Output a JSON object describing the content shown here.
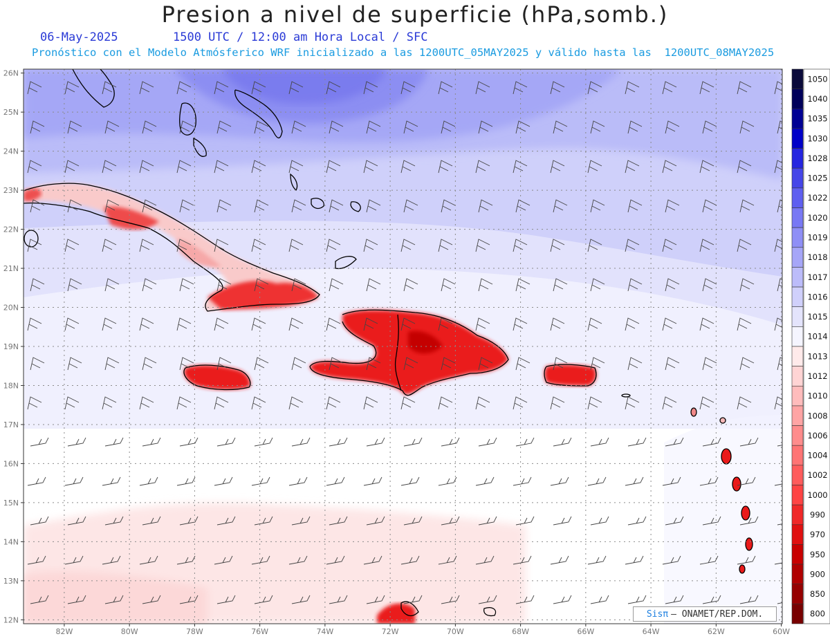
{
  "header": {
    "title": "Presion a nivel de superficie (hPa,somb.)",
    "date": "06-May-2025",
    "time_info": "1500 UTC / 12:00 am Hora Local / SFC",
    "forecast_info": "Pronóstico con el Modelo Atmósferico WRF inicializado a las 1200UTC_05MAY2025 y válido hasta las  1200UTC_08MAY2025"
  },
  "map": {
    "lat_labels": [
      "12N",
      "13N",
      "14N",
      "15N",
      "16N",
      "17N",
      "18N",
      "19N",
      "20N",
      "21N",
      "22N",
      "23N",
      "24N",
      "25N",
      "26N"
    ],
    "lon_labels": [
      "82W",
      "80W",
      "78W",
      "76W",
      "74W",
      "72W",
      "70W",
      "68W",
      "66W",
      "64W",
      "62W",
      "60W"
    ]
  },
  "legend": {
    "levels": [
      "1050",
      "1040",
      "1035",
      "1030",
      "1028",
      "1025",
      "1022",
      "1020",
      "1019",
      "1018",
      "1017",
      "1016",
      "1015",
      "1014",
      "1013",
      "1012",
      "1010",
      "1008",
      "1006",
      "1004",
      "1002",
      "1000",
      "990",
      "970",
      "950",
      "900",
      "850",
      "800"
    ],
    "colors": [
      "#0a0a3a",
      "#00005a",
      "#000094",
      "#0000c8",
      "#2525e0",
      "#4545e8",
      "#5f5ff0",
      "#7878f4",
      "#8f8ff6",
      "#a6a6f8",
      "#bcbcfa",
      "#d0d0fb",
      "#e4e4fc",
      "#f5f5ff",
      "#ffeaea",
      "#ffd4d4",
      "#ffbcbc",
      "#ffa4a4",
      "#ff8c8c",
      "#ff7474",
      "#ff5c5c",
      "#ff4444",
      "#f02828",
      "#e01010",
      "#c80000",
      "#b00000",
      "#960000",
      "#780000"
    ]
  },
  "credit": {
    "brand": "Sisπ",
    "text": "– ONAMET/REP.DOM."
  }
}
